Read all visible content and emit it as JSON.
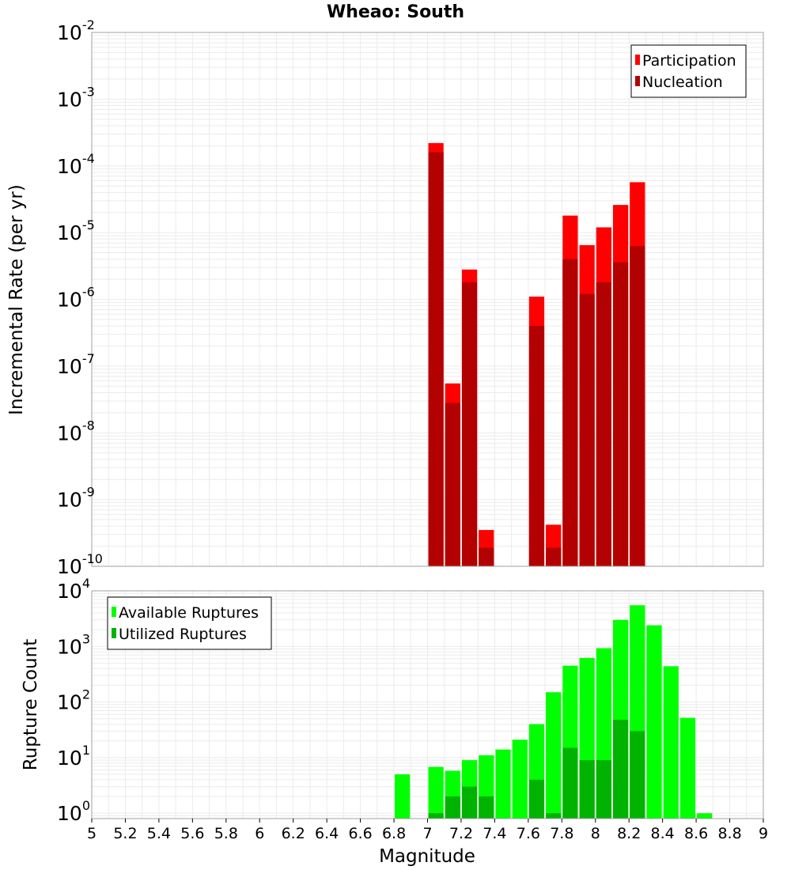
{
  "title": "Wheao: South",
  "colors": {
    "participation": "#ff0000",
    "nucleation": "#b30000",
    "available": "#00ff00",
    "utilized": "#00b300",
    "grid": "#ebebeb",
    "frame": "#a0a0a0"
  },
  "chart_data": [
    {
      "type": "bar",
      "scale": "log",
      "ylabel": "Incremental Rate (per yr)",
      "ylim": [
        1e-10,
        0.01
      ],
      "y_tick_exponents": [
        "-2",
        "-3",
        "-4",
        "-5",
        "-6",
        "-7",
        "-8",
        "-9",
        "-10"
      ],
      "y_tick_base": "10",
      "grid": true,
      "legend_position": "top-right",
      "bin_width": 0.1,
      "series": [
        {
          "name": "Participation",
          "color": "#ff0000",
          "points": [
            [
              7.05,
              0.00022
            ],
            [
              7.15,
              5.5e-08
            ],
            [
              7.25,
              2.8e-06
            ],
            [
              7.35,
              3.5e-10
            ],
            [
              7.65,
              1.1e-06
            ],
            [
              7.75,
              4.2e-10
            ],
            [
              7.85,
              1.8e-05
            ],
            [
              7.95,
              6.5e-06
            ],
            [
              8.05,
              1.2e-05
            ],
            [
              8.15,
              2.6e-05
            ],
            [
              8.25,
              5.7e-05
            ]
          ]
        },
        {
          "name": "Nucleation",
          "color": "#b30000",
          "points": [
            [
              7.05,
              0.00016
            ],
            [
              7.15,
              2.8e-08
            ],
            [
              7.25,
              1.8e-06
            ],
            [
              7.35,
              1.9e-10
            ],
            [
              7.65,
              4e-07
            ],
            [
              7.75,
              1.9e-10
            ],
            [
              7.85,
              4e-06
            ],
            [
              7.95,
              1.2e-06
            ],
            [
              8.05,
              1.8e-06
            ],
            [
              8.15,
              3.6e-06
            ],
            [
              8.25,
              6.3e-06
            ]
          ]
        }
      ]
    },
    {
      "type": "bar",
      "scale": "log",
      "ylabel": "Rupture Count",
      "xlabel": "Magnitude",
      "ylim": [
        0.8,
        10000
      ],
      "y_tick_exponents": [
        "0",
        "1",
        "2",
        "3",
        "4"
      ],
      "y_tick_base": "10",
      "xlim": [
        5,
        9
      ],
      "x_ticks": [
        "5",
        "5.2",
        "5.4",
        "5.6",
        "5.8",
        "6",
        "6.2",
        "6.4",
        "6.6",
        "6.8",
        "7",
        "7.2",
        "7.4",
        "7.6",
        "7.8",
        "8",
        "8.2",
        "8.4",
        "8.6",
        "8.8",
        "9"
      ],
      "grid": true,
      "legend_position": "top-left",
      "bin_width": 0.1,
      "series": [
        {
          "name": "Available Ruptures",
          "color": "#00ff00",
          "points": [
            [
              6.85,
              5
            ],
            [
              7.05,
              6.8
            ],
            [
              7.15,
              5.8
            ],
            [
              7.25,
              9
            ],
            [
              7.35,
              11
            ],
            [
              7.45,
              14
            ],
            [
              7.55,
              21
            ],
            [
              7.65,
              40
            ],
            [
              7.75,
              150
            ],
            [
              7.85,
              450
            ],
            [
              7.95,
              620
            ],
            [
              8.05,
              930
            ],
            [
              8.15,
              3000
            ],
            [
              8.25,
              5500
            ],
            [
              8.35,
              2400
            ],
            [
              8.45,
              440
            ],
            [
              8.55,
              52
            ],
            [
              8.65,
              1
            ]
          ]
        },
        {
          "name": "Utilized Ruptures",
          "color": "#00b300",
          "points": [
            [
              7.05,
              1
            ],
            [
              7.15,
              2
            ],
            [
              7.25,
              3
            ],
            [
              7.35,
              2
            ],
            [
              7.65,
              4
            ],
            [
              7.75,
              1
            ],
            [
              7.85,
              15
            ],
            [
              7.95,
              9
            ],
            [
              8.05,
              9
            ],
            [
              8.15,
              48
            ],
            [
              8.25,
              30
            ]
          ]
        }
      ]
    }
  ]
}
